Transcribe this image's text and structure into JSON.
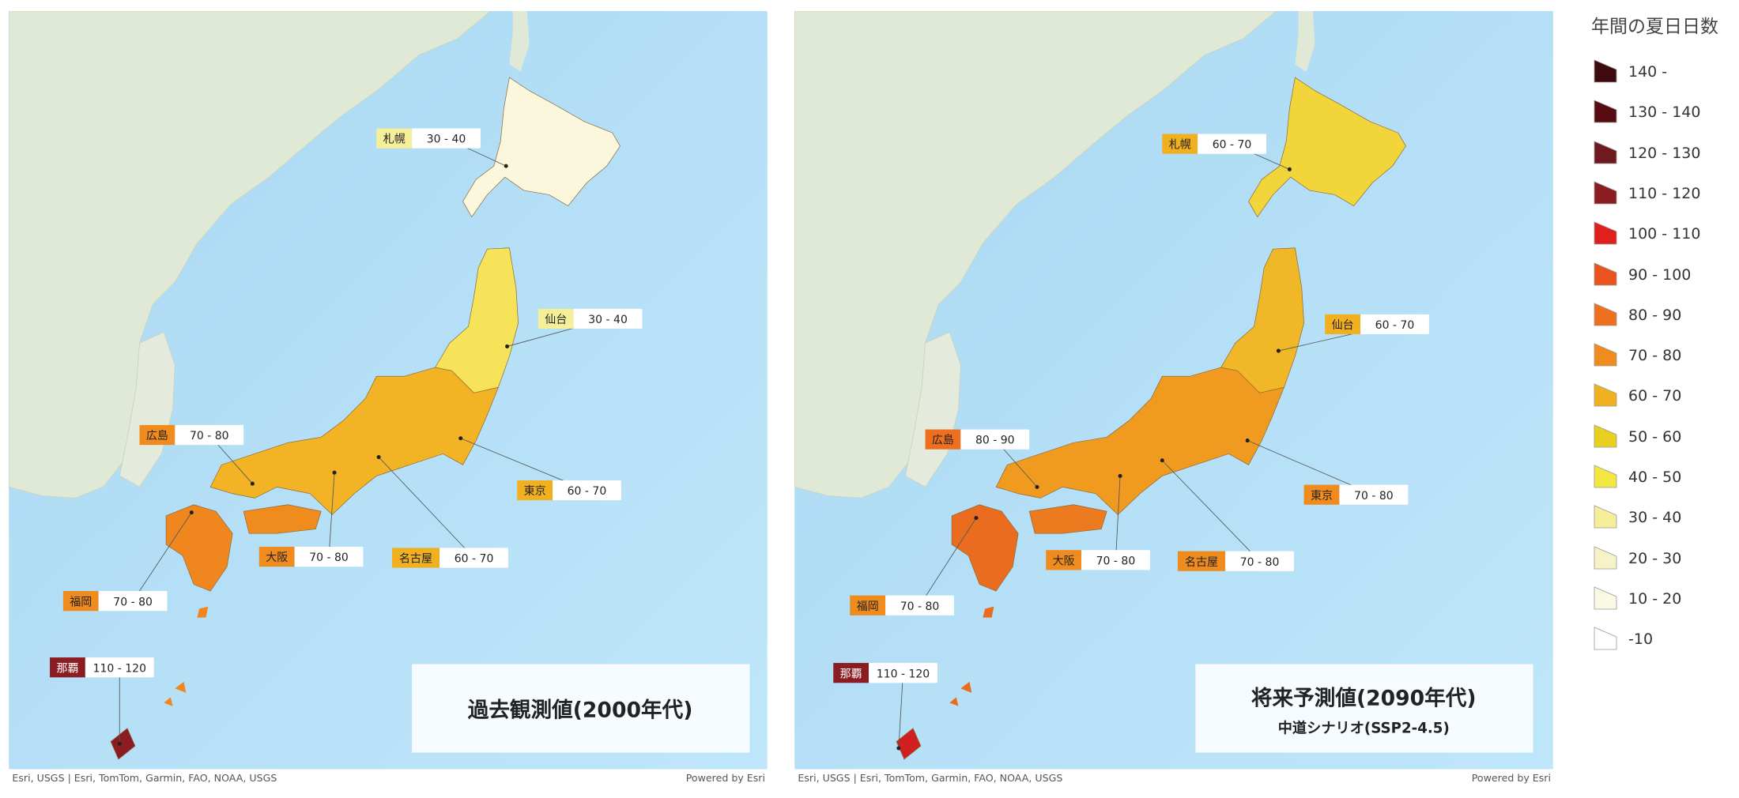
{
  "legend": {
    "title": "年間の夏日日数",
    "items": [
      {
        "label": "140 -",
        "color": "#3d0a0e"
      },
      {
        "label": "130 - 140",
        "color": "#560c12"
      },
      {
        "label": "120 - 130",
        "color": "#6e1a1e"
      },
      {
        "label": "110 - 120",
        "color": "#8b1c22"
      },
      {
        "label": "100 - 110",
        "color": "#e0201c"
      },
      {
        "label": "90 - 100",
        "color": "#e8531e"
      },
      {
        "label": "80 - 90",
        "color": "#ee6f1e"
      },
      {
        "label": "70 - 80",
        "color": "#f08c1e"
      },
      {
        "label": "60 - 70",
        "color": "#f0b020"
      },
      {
        "label": "50 - 60",
        "color": "#e8d020"
      },
      {
        "label": "40 - 50",
        "color": "#f2e640"
      },
      {
        "label": "30 - 40",
        "color": "#f5ef9a"
      },
      {
        "label": "20 - 30",
        "color": "#f8f3c6"
      },
      {
        "label": "10 - 20",
        "color": "#fbf9e4"
      },
      {
        "label": "-10",
        "color": "#ffffff"
      }
    ]
  },
  "maps": [
    {
      "title": "過去観測値(2000年代)",
      "attribution": "Esri, USGS | Esri, TomTom, Garmin, FAO, NOAA, USGS",
      "credit": "Powered by Esri",
      "cities": [
        {
          "name": "札幌",
          "range": "30 - 40",
          "color": "#f5ef9a"
        },
        {
          "name": "仙台",
          "range": "30 - 40",
          "color": "#f5ef9a"
        },
        {
          "name": "広島",
          "range": "70 - 80",
          "color": "#f08c1e"
        },
        {
          "name": "東京",
          "range": "60 - 70",
          "color": "#f0b020"
        },
        {
          "name": "大阪",
          "range": "70 - 80",
          "color": "#f08c1e"
        },
        {
          "name": "名古屋",
          "range": "60 - 70",
          "color": "#f0b020"
        },
        {
          "name": "福岡",
          "range": "70 - 80",
          "color": "#f08c1e"
        },
        {
          "name": "那覇",
          "range": "110 - 120",
          "color": "#8b1c22"
        }
      ]
    },
    {
      "title": "将来予測値(2090年代)",
      "subtitle": "中道シナリオ(SSP2-4.5)",
      "attribution": "Esri, USGS | Esri, TomTom, Garmin, FAO, NOAA, USGS",
      "credit": "Powered by Esri",
      "cities": [
        {
          "name": "札幌",
          "range": "60 - 70",
          "color": "#f0b020"
        },
        {
          "name": "仙台",
          "range": "60 - 70",
          "color": "#f0b020"
        },
        {
          "name": "広島",
          "range": "80 - 90",
          "color": "#ee6f1e"
        },
        {
          "name": "東京",
          "range": "70 - 80",
          "color": "#f08c1e"
        },
        {
          "name": "大阪",
          "range": "70 - 80",
          "color": "#f08c1e"
        },
        {
          "name": "名古屋",
          "range": "70 - 80",
          "color": "#f08c1e"
        },
        {
          "name": "福岡",
          "range": "70 - 80",
          "color": "#f08c1e"
        },
        {
          "name": "那覇",
          "range": "110 - 120",
          "color": "#8b1c22"
        }
      ]
    }
  ]
}
